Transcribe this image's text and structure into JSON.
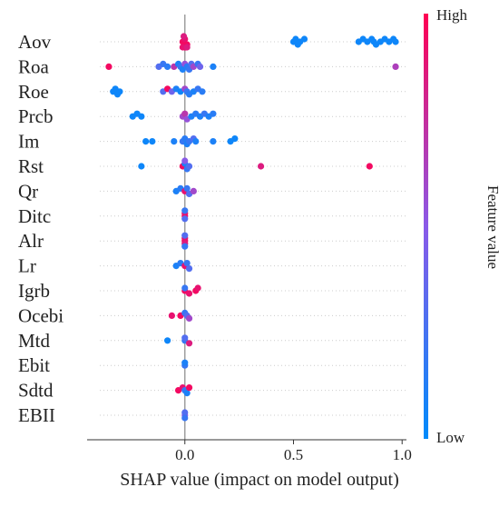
{
  "chart_data": {
    "type": "scatter",
    "kind": "shap-beeswarm",
    "xlabel": "SHAP value (impact on model output)",
    "xlim": [
      -0.45,
      1.02
    ],
    "xticks": [
      {
        "v": 0.0,
        "label": "0.0"
      },
      {
        "v": 0.5,
        "label": "0.5"
      },
      {
        "v": 1.0,
        "label": "1.0"
      }
    ],
    "zero_line": true,
    "grid": false,
    "colorbar": {
      "label": "Feature value",
      "high_label": "High",
      "low_label": "Low",
      "high_color": "#ff0052",
      "mid_color": "#8a5ae8",
      "low_color": "#008bfb"
    },
    "features": [
      {
        "name": "Aov",
        "points": [
          {
            "x": -0.01,
            "f": 0.95
          },
          {
            "x": 0.0,
            "f": 0.9
          },
          {
            "x": 0.01,
            "f": 0.95
          },
          {
            "x": -0.005,
            "f": 0.85
          },
          {
            "x": 0.005,
            "f": 0.9
          },
          {
            "x": 0.0,
            "f": 0.95
          },
          {
            "x": -0.01,
            "f": 0.9
          },
          {
            "x": 0.01,
            "f": 0.85
          },
          {
            "x": 0.5,
            "f": 0.05
          },
          {
            "x": 0.51,
            "f": 0.05
          },
          {
            "x": 0.52,
            "f": 0.05
          },
          {
            "x": 0.53,
            "f": 0.05
          },
          {
            "x": 0.55,
            "f": 0.05
          },
          {
            "x": 0.8,
            "f": 0.05
          },
          {
            "x": 0.82,
            "f": 0.05
          },
          {
            "x": 0.84,
            "f": 0.05
          },
          {
            "x": 0.86,
            "f": 0.05
          },
          {
            "x": 0.87,
            "f": 0.05
          },
          {
            "x": 0.88,
            "f": 0.05
          },
          {
            "x": 0.9,
            "f": 0.05
          },
          {
            "x": 0.92,
            "f": 0.05
          },
          {
            "x": 0.94,
            "f": 0.05
          },
          {
            "x": 0.96,
            "f": 0.05
          },
          {
            "x": 0.97,
            "f": 0.05
          }
        ]
      },
      {
        "name": "Roa",
        "points": [
          {
            "x": -0.35,
            "f": 0.95
          },
          {
            "x": -0.12,
            "f": 0.3
          },
          {
            "x": -0.1,
            "f": 0.2
          },
          {
            "x": -0.08,
            "f": 0.15
          },
          {
            "x": -0.05,
            "f": 0.7
          },
          {
            "x": -0.03,
            "f": 0.1
          },
          {
            "x": -0.02,
            "f": 0.2
          },
          {
            "x": -0.01,
            "f": 0.1
          },
          {
            "x": 0.0,
            "f": 0.55
          },
          {
            "x": 0.01,
            "f": 0.15
          },
          {
            "x": 0.02,
            "f": 0.2
          },
          {
            "x": 0.03,
            "f": 0.3
          },
          {
            "x": 0.04,
            "f": 0.6
          },
          {
            "x": 0.06,
            "f": 0.2
          },
          {
            "x": 0.07,
            "f": 0.4
          },
          {
            "x": 0.13,
            "f": 0.1
          },
          {
            "x": 0.97,
            "f": 0.65
          }
        ]
      },
      {
        "name": "Roe",
        "points": [
          {
            "x": -0.33,
            "f": 0.05
          },
          {
            "x": -0.32,
            "f": 0.05
          },
          {
            "x": -0.31,
            "f": 0.05
          },
          {
            "x": -0.3,
            "f": 0.05
          },
          {
            "x": -0.1,
            "f": 0.3
          },
          {
            "x": -0.08,
            "f": 0.95
          },
          {
            "x": -0.06,
            "f": 0.4
          },
          {
            "x": -0.04,
            "f": 0.1
          },
          {
            "x": -0.02,
            "f": 0.05
          },
          {
            "x": 0.0,
            "f": 0.6
          },
          {
            "x": 0.01,
            "f": 0.2
          },
          {
            "x": 0.02,
            "f": 0.15
          },
          {
            "x": 0.04,
            "f": 0.1
          },
          {
            "x": 0.06,
            "f": 0.2
          },
          {
            "x": 0.08,
            "f": 0.15
          }
        ]
      },
      {
        "name": "Prcb",
        "points": [
          {
            "x": -0.24,
            "f": 0.05
          },
          {
            "x": -0.22,
            "f": 0.05
          },
          {
            "x": -0.2,
            "f": 0.05
          },
          {
            "x": -0.01,
            "f": 0.6
          },
          {
            "x": 0.0,
            "f": 0.7
          },
          {
            "x": 0.01,
            "f": 0.55
          },
          {
            "x": 0.03,
            "f": 0.1
          },
          {
            "x": 0.05,
            "f": 0.15
          },
          {
            "x": 0.07,
            "f": 0.1
          },
          {
            "x": 0.09,
            "f": 0.2
          },
          {
            "x": 0.11,
            "f": 0.1
          },
          {
            "x": 0.13,
            "f": 0.15
          }
        ]
      },
      {
        "name": "Im",
        "points": [
          {
            "x": -0.18,
            "f": 0.05
          },
          {
            "x": -0.15,
            "f": 0.05
          },
          {
            "x": -0.05,
            "f": 0.1
          },
          {
            "x": -0.01,
            "f": 0.2
          },
          {
            "x": 0.0,
            "f": 0.15
          },
          {
            "x": 0.01,
            "f": 0.1
          },
          {
            "x": 0.02,
            "f": 0.2
          },
          {
            "x": 0.04,
            "f": 0.3
          },
          {
            "x": 0.05,
            "f": 0.1
          },
          {
            "x": 0.13,
            "f": 0.1
          },
          {
            "x": 0.21,
            "f": 0.05
          },
          {
            "x": 0.23,
            "f": 0.05
          }
        ]
      },
      {
        "name": "Rst",
        "points": [
          {
            "x": -0.2,
            "f": 0.05
          },
          {
            "x": -0.01,
            "f": 0.95
          },
          {
            "x": 0.0,
            "f": 0.1
          },
          {
            "x": 0.01,
            "f": 0.2
          },
          {
            "x": 0.02,
            "f": 0.3
          },
          {
            "x": 0.0,
            "f": 0.5
          },
          {
            "x": 0.35,
            "f": 0.85
          },
          {
            "x": 0.85,
            "f": 0.95
          }
        ]
      },
      {
        "name": "Qr",
        "points": [
          {
            "x": -0.04,
            "f": 0.1
          },
          {
            "x": -0.02,
            "f": 0.15
          },
          {
            "x": 0.0,
            "f": 0.9
          },
          {
            "x": 0.01,
            "f": 0.2
          },
          {
            "x": 0.02,
            "f": 0.3
          },
          {
            "x": 0.04,
            "f": 0.6
          }
        ]
      },
      {
        "name": "Ditc",
        "points": [
          {
            "x": 0.0,
            "f": 0.95
          },
          {
            "x": 0.0,
            "f": 0.9
          },
          {
            "x": 0.0,
            "f": 0.3
          },
          {
            "x": 0.0,
            "f": 0.2
          }
        ]
      },
      {
        "name": "Alr",
        "points": [
          {
            "x": 0.0,
            "f": 0.95
          },
          {
            "x": 0.0,
            "f": 0.9
          },
          {
            "x": 0.0,
            "f": 0.85
          },
          {
            "x": 0.0,
            "f": 0.3
          },
          {
            "x": 0.0,
            "f": 0.2
          }
        ]
      },
      {
        "name": "Lr",
        "points": [
          {
            "x": -0.04,
            "f": 0.1
          },
          {
            "x": -0.02,
            "f": 0.15
          },
          {
            "x": 0.0,
            "f": 0.9
          },
          {
            "x": 0.01,
            "f": 0.2
          },
          {
            "x": 0.02,
            "f": 0.3
          }
        ]
      },
      {
        "name": "Igrb",
        "points": [
          {
            "x": 0.0,
            "f": 0.95
          },
          {
            "x": 0.0,
            "f": 0.2
          },
          {
            "x": 0.02,
            "f": 0.9
          },
          {
            "x": 0.05,
            "f": 0.95
          },
          {
            "x": 0.06,
            "f": 0.9
          }
        ]
      },
      {
        "name": "Ocebi",
        "points": [
          {
            "x": -0.06,
            "f": 0.9
          },
          {
            "x": -0.02,
            "f": 0.95
          },
          {
            "x": 0.0,
            "f": 0.2
          },
          {
            "x": 0.01,
            "f": 0.3
          },
          {
            "x": 0.02,
            "f": 0.6
          }
        ]
      },
      {
        "name": "Mtd",
        "points": [
          {
            "x": -0.08,
            "f": 0.05
          },
          {
            "x": 0.0,
            "f": 0.2
          },
          {
            "x": 0.0,
            "f": 0.3
          },
          {
            "x": 0.02,
            "f": 0.85
          }
        ]
      },
      {
        "name": "Ebit",
        "points": [
          {
            "x": 0.0,
            "f": 0.2
          },
          {
            "x": 0.0,
            "f": 0.1
          }
        ]
      },
      {
        "name": "Sdtd",
        "points": [
          {
            "x": -0.03,
            "f": 0.95
          },
          {
            "x": -0.01,
            "f": 0.9
          },
          {
            "x": 0.0,
            "f": 0.2
          },
          {
            "x": 0.01,
            "f": 0.1
          },
          {
            "x": 0.02,
            "f": 0.95
          }
        ]
      },
      {
        "name": "EBII",
        "points": [
          {
            "x": 0.0,
            "f": 0.5
          },
          {
            "x": 0.0,
            "f": 0.3
          },
          {
            "x": 0.0,
            "f": 0.2
          }
        ]
      }
    ]
  }
}
